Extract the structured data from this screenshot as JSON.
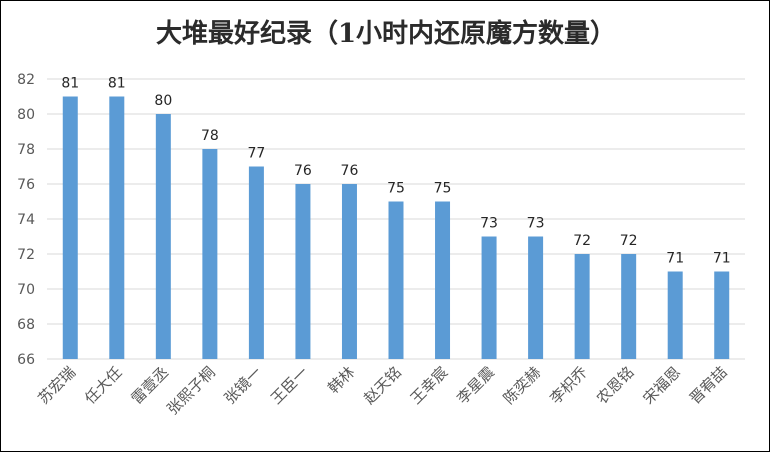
{
  "chart_data": {
    "type": "bar",
    "title": "大堆最好纪录（1小时内还原魔方数量）",
    "xlabel": "",
    "ylabel": "",
    "categories": [
      "苏宏瑞",
      "任大任",
      "雷壹丞",
      "张熙子桐",
      "张镜一",
      "王臣一",
      "韩林",
      "赵天铭",
      "王幸宸",
      "李星震",
      "陈奕赫",
      "李枳乔",
      "农恩铭",
      "宋福恩",
      "晋宥喆"
    ],
    "values": [
      81,
      81,
      80,
      78,
      77,
      76,
      76,
      75,
      75,
      73,
      73,
      72,
      72,
      71,
      71
    ],
    "ylim": [
      66,
      82
    ],
    "yticks": [
      66,
      68,
      70,
      72,
      74,
      76,
      78,
      80,
      82
    ],
    "grid": true,
    "legend": "none",
    "bar_color": "#5b9bd5"
  }
}
